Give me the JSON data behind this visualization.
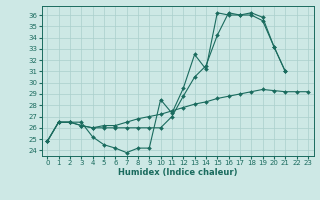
{
  "xlabel": "Humidex (Indice chaleur)",
  "background_color": "#cde8e5",
  "line_color": "#1a6b5e",
  "grid_color": "#aacfcc",
  "xlim": [
    -0.5,
    23.5
  ],
  "ylim": [
    23.5,
    36.8
  ],
  "yticks": [
    24,
    25,
    26,
    27,
    28,
    29,
    30,
    31,
    32,
    33,
    34,
    35,
    36
  ],
  "xticks": [
    0,
    1,
    2,
    3,
    4,
    5,
    6,
    7,
    8,
    9,
    10,
    11,
    12,
    13,
    14,
    15,
    16,
    17,
    18,
    19,
    20,
    21,
    22,
    23
  ],
  "line1_x": [
    0,
    1,
    2,
    3,
    4,
    5,
    6,
    7,
    8,
    9,
    10,
    11,
    12,
    13,
    14,
    15,
    16,
    17,
    18,
    19,
    20,
    21,
    22,
    23
  ],
  "line1_y": [
    24.8,
    26.5,
    26.5,
    26.5,
    25.2,
    24.5,
    24.2,
    23.8,
    24.2,
    24.2,
    28.5,
    27.3,
    29.5,
    32.5,
    31.2,
    36.2,
    36.0,
    36.0,
    36.0,
    35.5,
    33.2,
    31.0,
    null,
    null
  ],
  "line2_x": [
    0,
    1,
    2,
    3,
    4,
    5,
    6,
    7,
    8,
    9,
    10,
    11,
    12,
    13,
    14,
    15,
    16,
    17,
    18,
    19,
    20,
    21,
    22,
    23
  ],
  "line2_y": [
    24.8,
    26.5,
    26.5,
    26.2,
    26.0,
    26.0,
    26.0,
    26.0,
    26.0,
    26.0,
    26.0,
    27.0,
    28.8,
    30.5,
    31.5,
    34.2,
    36.2,
    36.0,
    36.2,
    35.8,
    33.2,
    31.0,
    null,
    null
  ],
  "line3_x": [
    0,
    1,
    2,
    3,
    4,
    5,
    6,
    7,
    8,
    9,
    10,
    11,
    12,
    13,
    14,
    15,
    16,
    17,
    18,
    19,
    20,
    21,
    22,
    23
  ],
  "line3_y": [
    24.8,
    26.5,
    26.5,
    26.2,
    26.0,
    26.2,
    26.2,
    26.5,
    26.8,
    27.0,
    27.2,
    27.5,
    27.8,
    28.1,
    28.3,
    28.6,
    28.8,
    29.0,
    29.2,
    29.4,
    29.3,
    29.2,
    29.2,
    29.2
  ]
}
